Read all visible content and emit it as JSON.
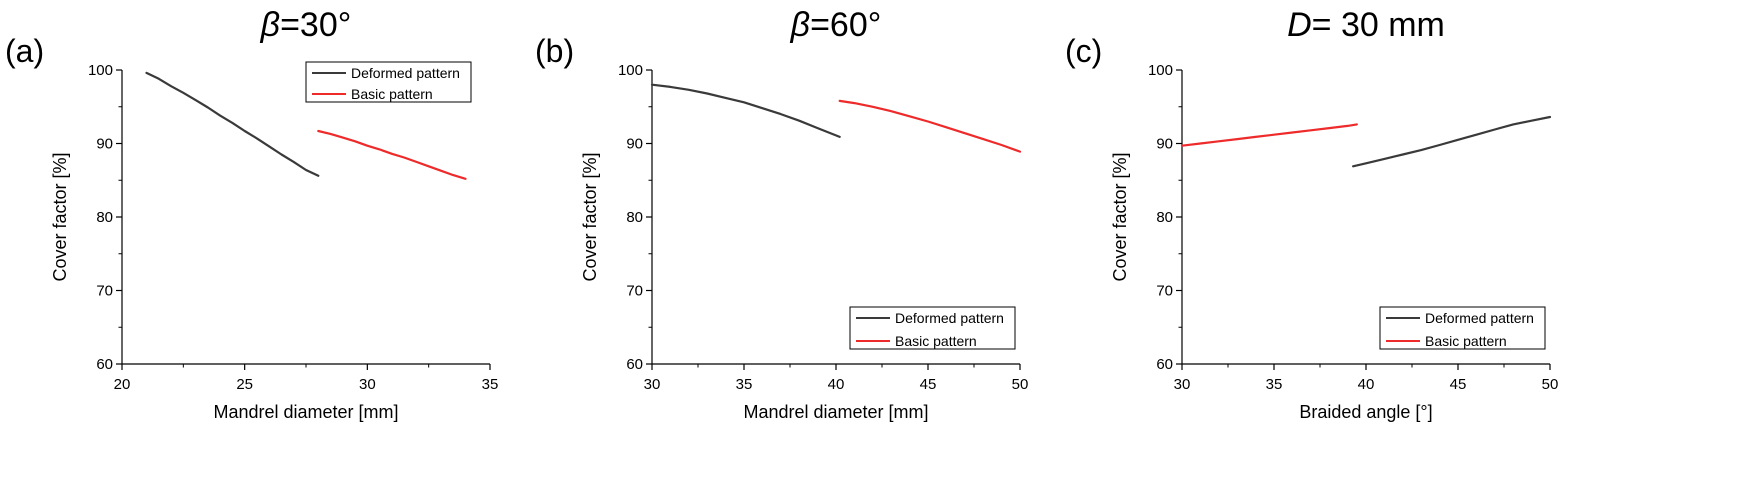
{
  "chart_data": [
    {
      "type": "line",
      "panel_label": "(a)",
      "title": {
        "symbol": "β",
        "text": "=30°"
      },
      "xlabel": "Mandrel diameter [mm]",
      "ylabel": "Cover factor [%]",
      "xlim": [
        20,
        35
      ],
      "ylim": [
        60,
        100
      ],
      "xticks": [
        20,
        25,
        30,
        35
      ],
      "yticks": [
        60,
        70,
        80,
        90,
        100
      ],
      "legend_position": "top-right",
      "series": [
        {
          "name": "Deformed pattern",
          "color": "#3a3a3a",
          "x": [
            21,
            21.5,
            22,
            22.5,
            23,
            23.5,
            24,
            24.5,
            25,
            25.5,
            26,
            26.5,
            27,
            27.5,
            28
          ],
          "y": [
            99.6,
            98.8,
            97.8,
            96.9,
            95.9,
            94.9,
            93.8,
            92.8,
            91.7,
            90.7,
            89.6,
            88.5,
            87.5,
            86.4,
            85.6
          ]
        },
        {
          "name": "Basic pattern",
          "color": "#ee2a2a",
          "x": [
            28,
            28.5,
            29,
            29.5,
            30,
            30.5,
            31,
            31.5,
            32,
            32.5,
            33,
            33.5,
            34
          ],
          "y": [
            91.7,
            91.3,
            90.8,
            90.3,
            89.7,
            89.2,
            88.6,
            88.1,
            87.5,
            86.9,
            86.3,
            85.7,
            85.2
          ]
        }
      ]
    },
    {
      "type": "line",
      "panel_label": "(b)",
      "title": {
        "symbol": "β",
        "text": "=60°"
      },
      "xlabel": "Mandrel diameter [mm]",
      "ylabel": "Cover factor [%]",
      "xlim": [
        30,
        50
      ],
      "ylim": [
        60,
        100
      ],
      "xticks": [
        30,
        35,
        40,
        45,
        50
      ],
      "yticks": [
        60,
        70,
        80,
        90,
        100
      ],
      "legend_position": "bottom-right",
      "series": [
        {
          "name": "Deformed pattern",
          "color": "#3a3a3a",
          "x": [
            30,
            31,
            32,
            33,
            34,
            35,
            36,
            37,
            38,
            39,
            40.2
          ],
          "y": [
            98.0,
            97.7,
            97.3,
            96.8,
            96.2,
            95.6,
            94.8,
            94.0,
            93.1,
            92.1,
            90.9
          ]
        },
        {
          "name": "Basic pattern",
          "color": "#ee2a2a",
          "x": [
            40.2,
            41,
            42,
            43,
            44,
            45,
            46,
            47,
            48,
            49,
            50
          ],
          "y": [
            95.8,
            95.5,
            95.0,
            94.4,
            93.7,
            93.0,
            92.2,
            91.4,
            90.6,
            89.8,
            88.9
          ]
        }
      ]
    },
    {
      "type": "line",
      "panel_label": "(c)",
      "title": {
        "symbol": "D",
        "text": "= 30 mm"
      },
      "xlabel": "Braided angle [°]",
      "ylabel": "Cover factor [%]",
      "xlim": [
        30,
        50
      ],
      "ylim": [
        60,
        100
      ],
      "xticks": [
        30,
        35,
        40,
        45,
        50
      ],
      "yticks": [
        60,
        70,
        80,
        90,
        100
      ],
      "legend_position": "bottom-right",
      "series": [
        {
          "name": "Deformed pattern",
          "color": "#3a3a3a",
          "x": [
            39.3,
            40,
            41,
            42,
            43,
            44,
            45,
            46,
            47,
            48,
            49,
            50
          ],
          "y": [
            86.9,
            87.3,
            87.9,
            88.5,
            89.1,
            89.8,
            90.5,
            91.2,
            91.9,
            92.6,
            93.1,
            93.6
          ]
        },
        {
          "name": "Basic pattern",
          "color": "#ee2a2a",
          "x": [
            30,
            31,
            32,
            33,
            34,
            35,
            36,
            37,
            38,
            39,
            39.5
          ],
          "y": [
            89.7,
            90.0,
            90.3,
            90.6,
            90.9,
            91.2,
            91.5,
            91.8,
            92.1,
            92.4,
            92.6
          ]
        }
      ]
    }
  ]
}
